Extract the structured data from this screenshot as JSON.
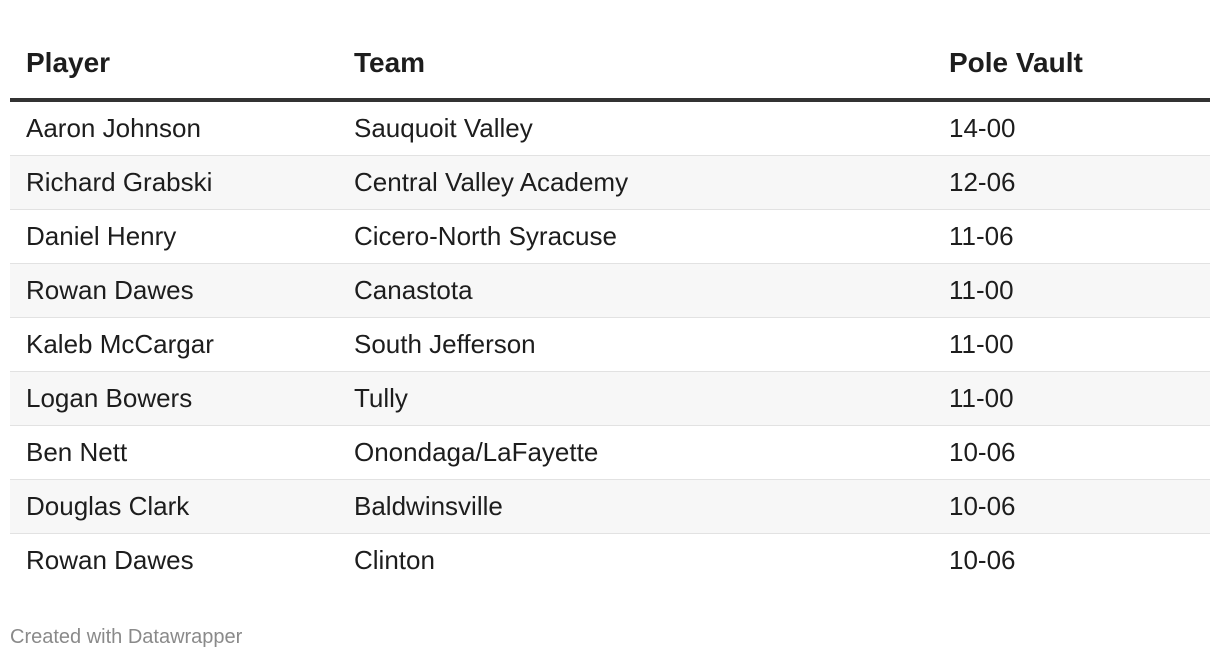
{
  "table": {
    "header": [
      "Player",
      "Team",
      "Pole Vault"
    ],
    "rows": [
      [
        "Aaron Johnson",
        "Sauquoit Valley",
        "14-00"
      ],
      [
        "Richard Grabski",
        "Central Valley Academy",
        "12-06"
      ],
      [
        "Daniel Henry",
        "Cicero-North Syracuse",
        "11-06"
      ],
      [
        "Rowan Dawes",
        "Canastota",
        "11-00"
      ],
      [
        "Kaleb McCargar",
        "South Jefferson",
        "11-00"
      ],
      [
        "Logan Bowers",
        "Tully",
        "11-00"
      ],
      [
        "Ben Nett",
        "Onondaga/LaFayette",
        "10-06"
      ],
      [
        "Douglas Clark",
        "Baldwinsville",
        "10-06"
      ],
      [
        "Rowan Dawes",
        "Clinton",
        "10-06"
      ]
    ]
  },
  "footer": "Created with Datawrapper"
}
